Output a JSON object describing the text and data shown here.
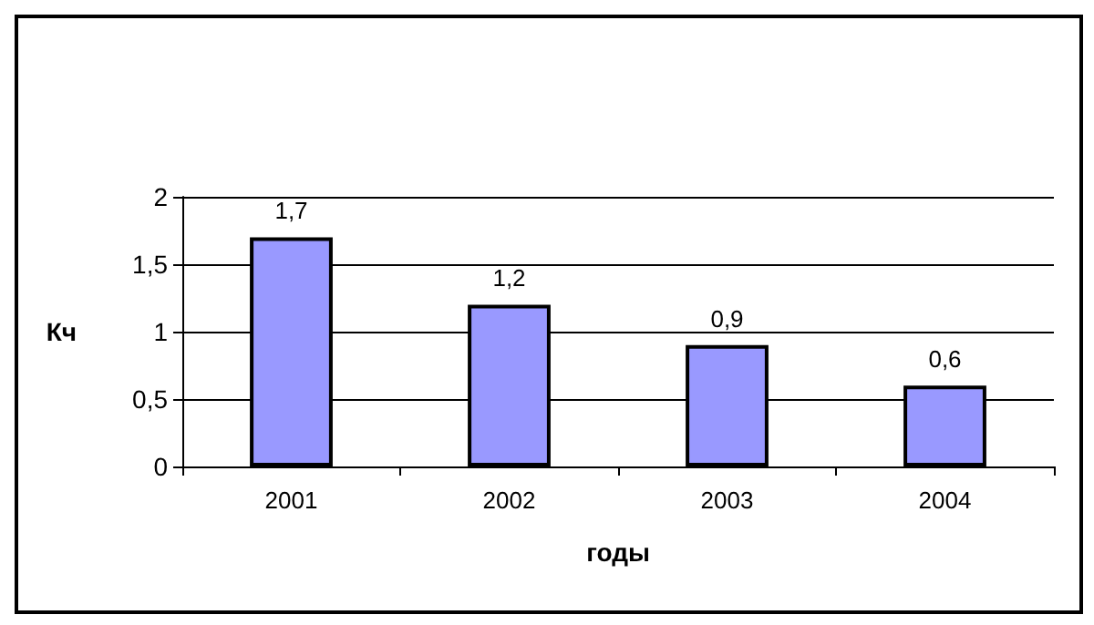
{
  "chart_data": {
    "type": "bar",
    "xlabel": "годы",
    "ylabel": "Кч",
    "categories": [
      "2001",
      "2002",
      "2003",
      "2004"
    ],
    "values": [
      1.7,
      1.2,
      0.9,
      0.6
    ],
    "value_labels": [
      "1,7",
      "1,2",
      "0,9",
      "0,6"
    ],
    "color": "#9999ff",
    "ylim": [
      0,
      2
    ],
    "yticks": [
      0,
      {
        "value": 0.5,
        "label": "0,5"
      },
      1,
      {
        "value": 1.5,
        "label": "1,5"
      },
      2
    ],
    "grid": "y"
  }
}
